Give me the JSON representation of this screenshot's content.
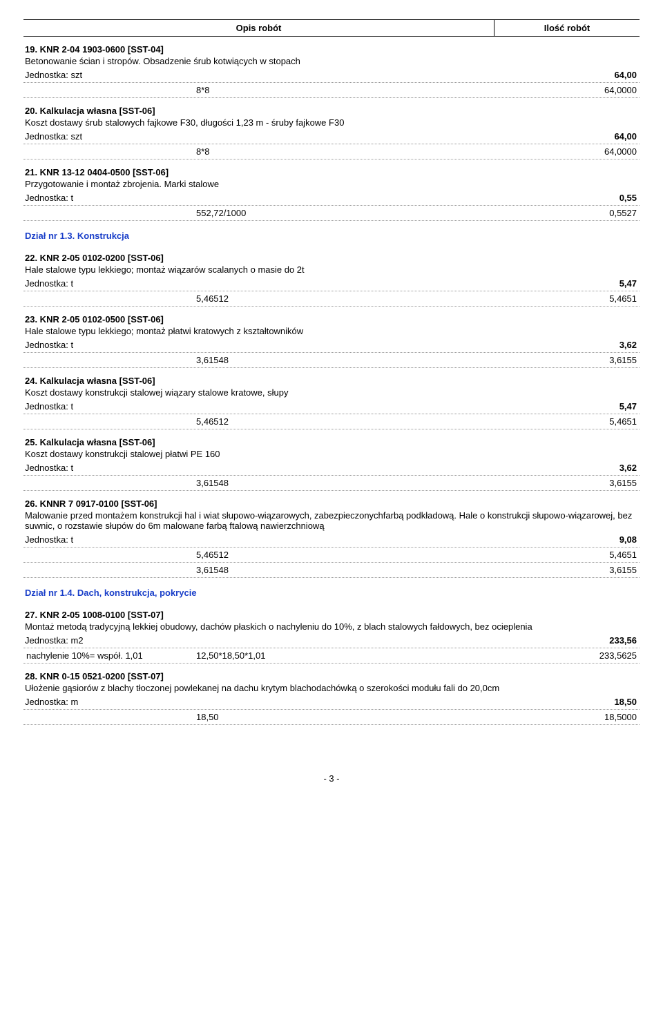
{
  "header": {
    "opis": "Opis robót",
    "ilosc": "Ilość robót"
  },
  "entries": [
    {
      "title": "19. KNR 2-04  1903-0600   [SST-04]",
      "desc": "Betonowanie ścian i stropów. Obsadzenie śrub kotwiących w stopach",
      "jedLabel": "Jednostka: szt",
      "jedValue": "64,00",
      "calcs": [
        {
          "l": "",
          "m": "8*8",
          "r": "64,0000"
        }
      ]
    },
    {
      "title": "20. Kalkulacja własna   [SST-06]",
      "desc": "Koszt dostawy śrub stalowych fajkowe F30, długości 1,23 m - śruby fajkowe F30",
      "jedLabel": "Jednostka: szt",
      "jedValue": "64,00",
      "calcs": [
        {
          "l": "",
          "m": "8*8",
          "r": "64,0000"
        }
      ]
    },
    {
      "title": "21. KNR 13-12  0404-0500   [SST-06]",
      "desc": "Przygotowanie i montaż zbrojenia. Marki stalowe",
      "jedLabel": "Jednostka: t",
      "jedValue": "0,55",
      "calcs": [
        {
          "l": "",
          "m": "552,72/1000",
          "r": "0,5527"
        }
      ]
    }
  ],
  "section1": "Dział nr 1.3. Konstrukcja",
  "entries2": [
    {
      "title": "22. KNR 2-05  0102-0200   [SST-06]",
      "desc": "Hale stalowe typu lekkiego; montaż wiązarów scalanych o masie do 2t",
      "jedLabel": "Jednostka: t",
      "jedValue": "5,47",
      "calcs": [
        {
          "l": "",
          "m": "5,46512",
          "r": "5,4651"
        }
      ]
    },
    {
      "title": "23. KNR 2-05  0102-0500   [SST-06]",
      "desc": "Hale stalowe typu lekkiego; montaż płatwi kratowych z kształtowników",
      "jedLabel": "Jednostka: t",
      "jedValue": "3,62",
      "calcs": [
        {
          "l": "",
          "m": "3,61548",
          "r": "3,6155"
        }
      ]
    },
    {
      "title": "24. Kalkulacja własna   [SST-06]",
      "desc": "Koszt dostawy konstrukcji stalowej wiązary stalowe kratowe, słupy",
      "jedLabel": "Jednostka: t",
      "jedValue": "5,47",
      "calcs": [
        {
          "l": "",
          "m": "5,46512",
          "r": "5,4651"
        }
      ]
    },
    {
      "title": "25. Kalkulacja własna   [SST-06]",
      "desc": "Koszt dostawy konstrukcji stalowej płatwi PE 160",
      "jedLabel": "Jednostka: t",
      "jedValue": "3,62",
      "calcs": [
        {
          "l": "",
          "m": "3,61548",
          "r": "3,6155"
        }
      ]
    },
    {
      "title": "26. KNNR 7  0917-0100   [SST-06]",
      "desc": "Malowanie przed montażem konstrukcji hal i wiat słupowo-wiązarowych, zabezpieczonychfarbą podkładową. Hale o konstrukcji słupowo-wiązarowej, bez suwnic, o rozstawie słupów do 6m malowane farbą ftalową nawierzchniową",
      "jedLabel": "Jednostka: t",
      "jedValue": "9,08",
      "calcs": [
        {
          "l": "",
          "m": "5,46512",
          "r": "5,4651"
        },
        {
          "l": "",
          "m": "3,61548",
          "r": "3,6155"
        }
      ]
    }
  ],
  "section2": "Dział nr 1.4. Dach, konstrukcja, pokrycie",
  "entries3": [
    {
      "title": "27. KNR 2-05  1008-0100   [SST-07]",
      "desc": "Montaż metodą tradycyjną lekkiej obudowy, dachów płaskich o nachyleniu do 10%, z blach stalowych fałdowych, bez ocieplenia",
      "jedLabel": "Jednostka: m2",
      "jedValue": "233,56",
      "calcs": [
        {
          "l": "nachylenie 10%= współ. 1,01",
          "m": "12,50*18,50*1,01",
          "r": "233,5625"
        }
      ]
    },
    {
      "title": "28. KNR 0-15  0521-0200   [SST-07]",
      "desc": "Ułożenie gąsiorów z blachy tłoczonej powlekanej na dachu krytym blachodachówką o szerokości modułu fali do 20,0cm",
      "jedLabel": "Jednostka: m",
      "jedValue": "18,50",
      "calcs": [
        {
          "l": "",
          "m": "18,50",
          "r": "18,5000"
        }
      ]
    }
  ],
  "footer": "- 3 -"
}
